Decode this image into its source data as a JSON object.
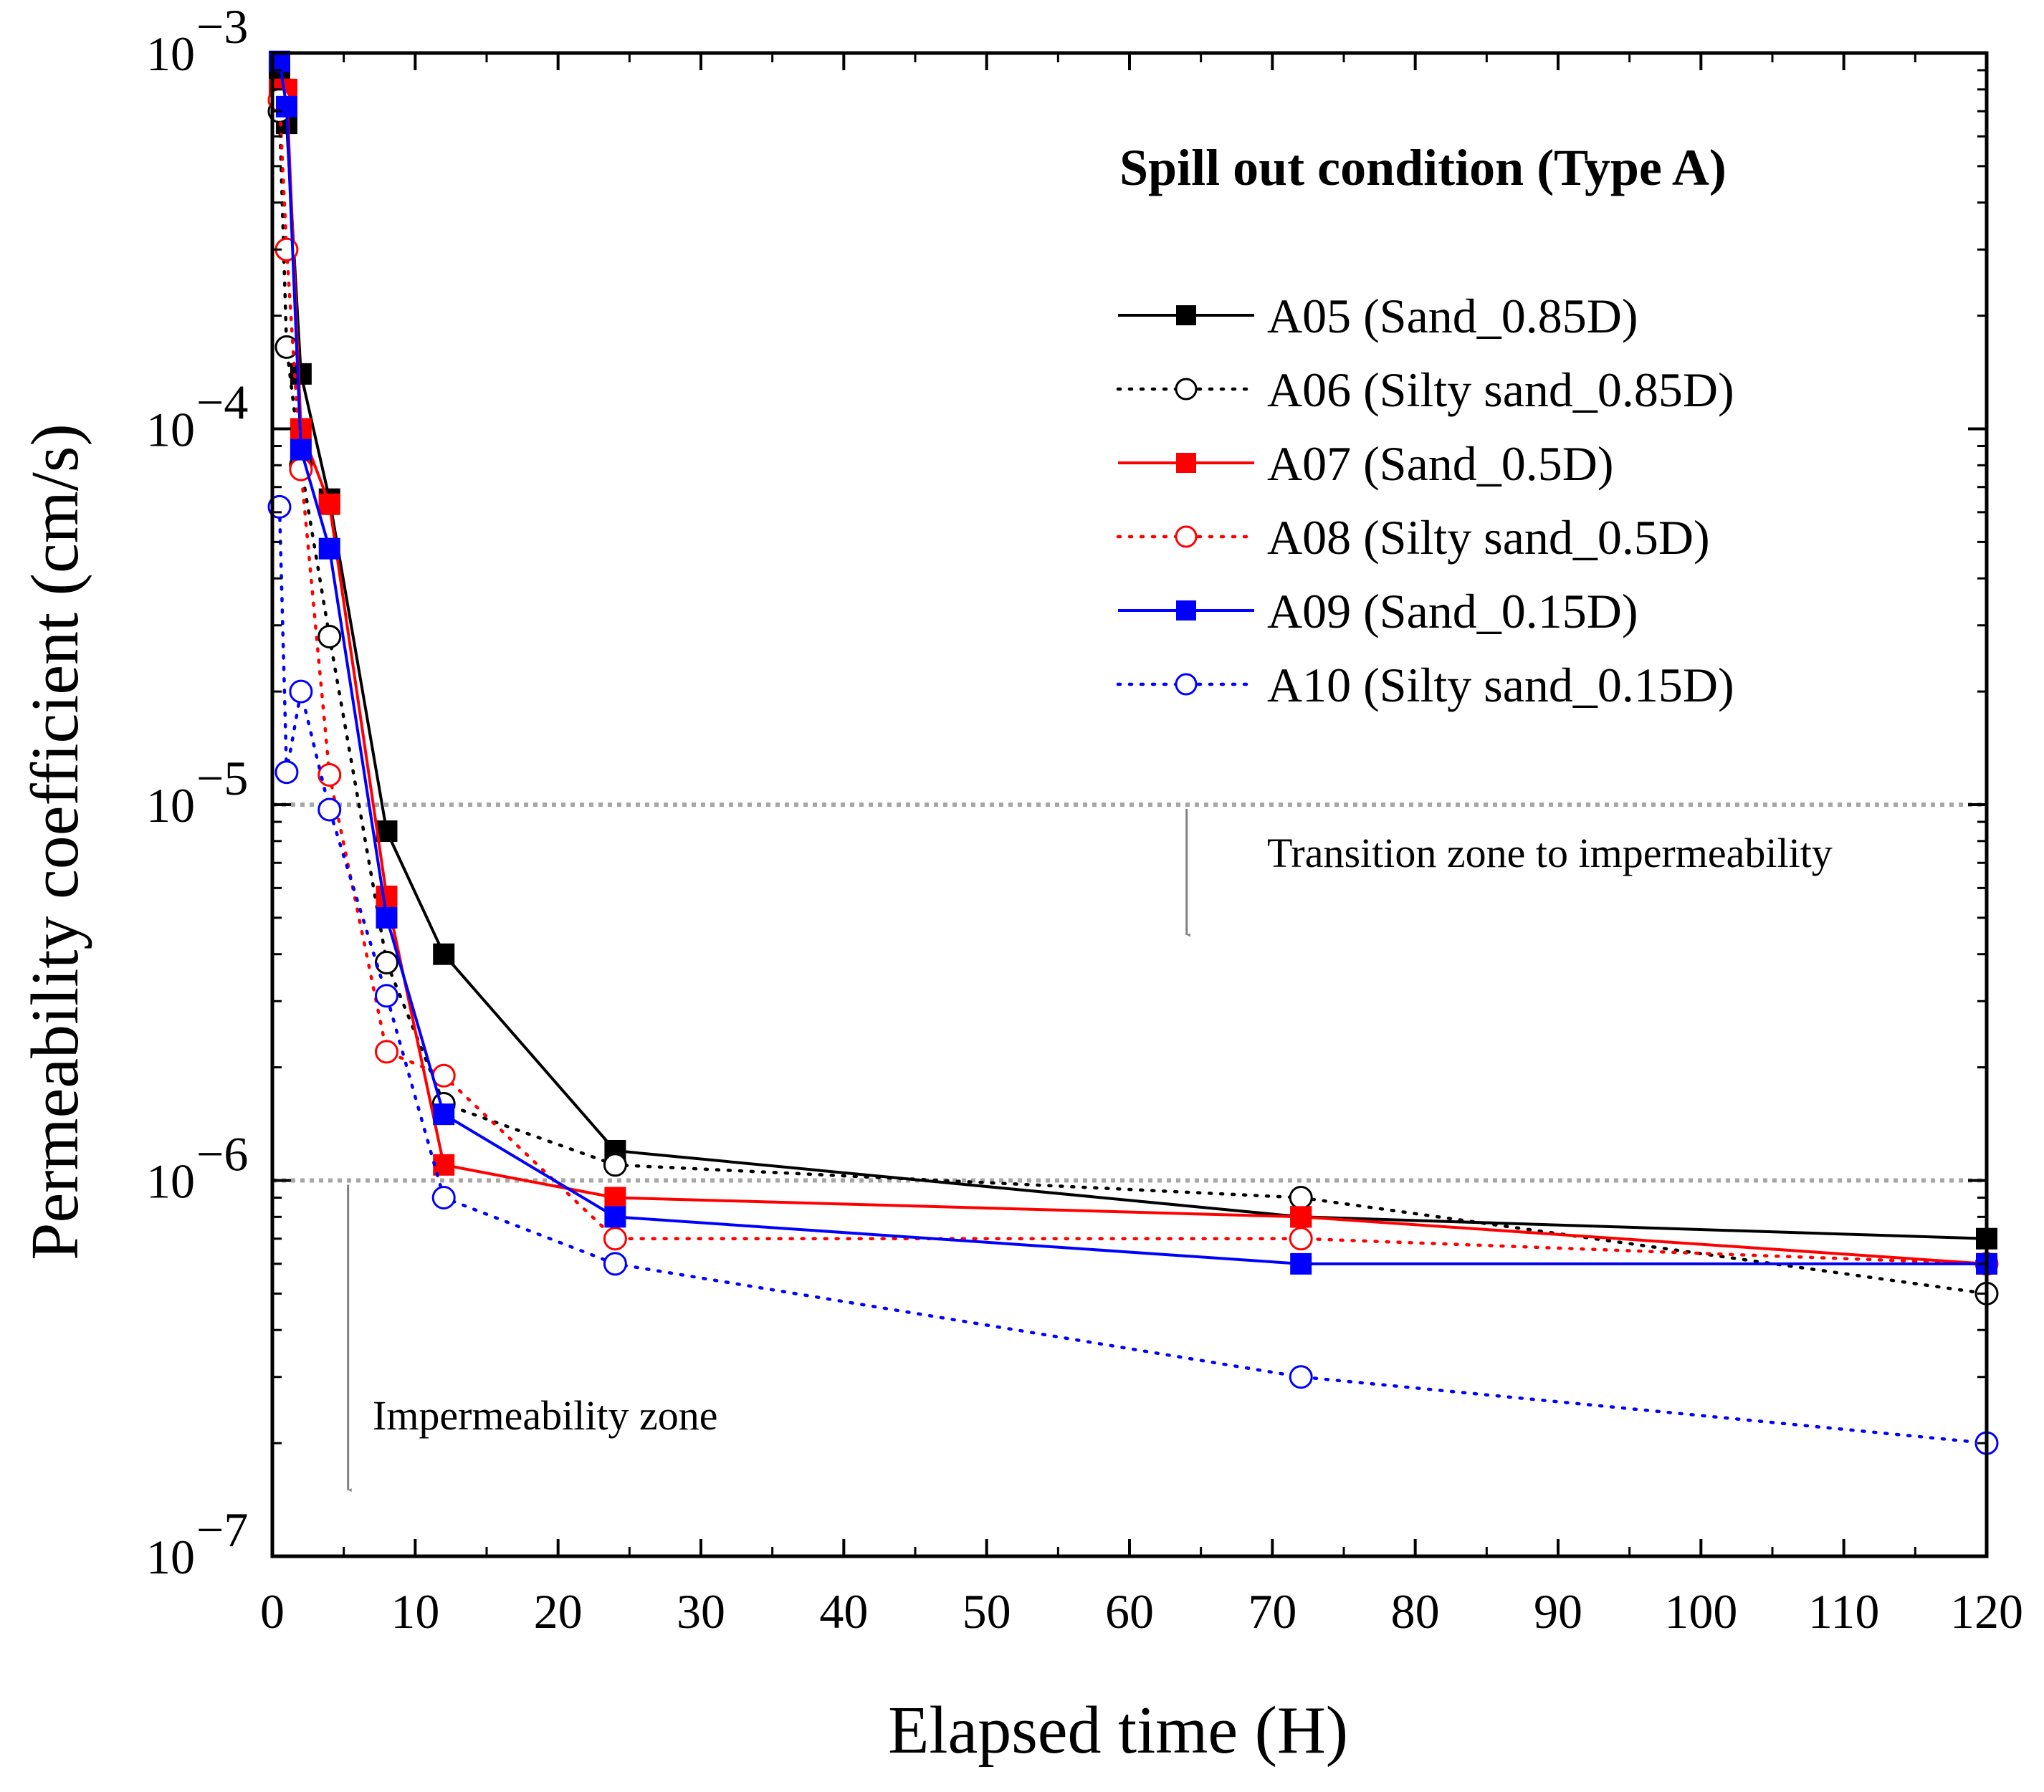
{
  "chart_data": {
    "type": "line",
    "title": "",
    "xlabel": "Elapsed time (H)",
    "ylabel": "Permeability coefficient (cm/s)",
    "xlim": [
      0,
      120
    ],
    "ylim": [
      1e-07,
      0.001
    ],
    "yscale": "log",
    "x_ticks": [
      "0",
      "10",
      "20",
      "30",
      "40",
      "50",
      "60",
      "70",
      "80",
      "90",
      "100",
      "110",
      "120"
    ],
    "y_ticks": [
      {
        "value": 1e-07,
        "base": "10",
        "exp": "−7"
      },
      {
        "value": 1e-06,
        "base": "10",
        "exp": "−6"
      },
      {
        "value": 1e-05,
        "base": "10",
        "exp": "−5"
      },
      {
        "value": 0.0001,
        "base": "10",
        "exp": "−4"
      },
      {
        "value": 0.001,
        "base": "10",
        "exp": "−3"
      }
    ],
    "legend_title": "Spill out condition (Type A)",
    "legend_position": "top-right",
    "series": [
      {
        "name": "A05 (Sand_0.85D)",
        "color": "#000000",
        "line": "solid",
        "marker": "filled-square",
        "x": [
          0.5,
          1,
          2,
          4,
          8,
          12,
          24,
          72,
          120
        ],
        "y": [
          0.0009,
          0.00065,
          0.00014,
          6.5e-05,
          8.5e-06,
          4e-06,
          1.2e-06,
          8e-07,
          7e-07
        ]
      },
      {
        "name": "A06 (Silty sand_0.85D)",
        "color": "#000000",
        "line": "dotted",
        "marker": "open-circle",
        "x": [
          0.5,
          1,
          2,
          4,
          8,
          12,
          24,
          72,
          120
        ],
        "y": [
          0.0007,
          0.000165,
          8e-05,
          2.8e-05,
          3.8e-06,
          1.6e-06,
          1.1e-06,
          9e-07,
          5e-07
        ]
      },
      {
        "name": "A07 (Sand_0.5D)",
        "color": "#ff0000",
        "line": "solid",
        "marker": "filled-square",
        "x": [
          0.5,
          1,
          2,
          4,
          8,
          12,
          24,
          72,
          120
        ],
        "y": [
          0.0008,
          0.0008,
          0.0001,
          6.3e-05,
          5.7e-06,
          1.1e-06,
          9e-07,
          8e-07,
          6e-07
        ]
      },
      {
        "name": "A08 (Silty sand_0.5D)",
        "color": "#ff0000",
        "line": "dotted",
        "marker": "open-circle",
        "x": [
          0.5,
          1,
          2,
          4,
          8,
          12,
          24,
          72,
          120
        ],
        "y": [
          0.00075,
          0.0003,
          7.8e-05,
          1.2e-05,
          2.2e-06,
          1.9e-06,
          7e-07,
          7e-07,
          6e-07
        ]
      },
      {
        "name": "A09 (Sand_0.15D)",
        "color": "#0000ff",
        "line": "solid",
        "marker": "filled-square",
        "x": [
          0.5,
          1,
          2,
          4,
          8,
          12,
          24,
          72,
          120
        ],
        "y": [
          0.00095,
          0.00072,
          8.8e-05,
          4.8e-05,
          5e-06,
          1.5e-06,
          8e-07,
          6e-07,
          6e-07
        ]
      },
      {
        "name": "A10 (Silty sand_0.15D)",
        "color": "#0000ff",
        "line": "dotted",
        "marker": "open-circle",
        "x": [
          0.5,
          1,
          2,
          4,
          8,
          12,
          24,
          72,
          120
        ],
        "y": [
          6.2e-05,
          1.22e-05,
          2e-05,
          9.7e-06,
          3.1e-06,
          9e-07,
          6e-07,
          3e-07,
          2e-07
        ]
      }
    ],
    "reference_lines": [
      {
        "y": 1e-05,
        "style": "dotted",
        "color": "#a6a6a6"
      },
      {
        "y": 1e-06,
        "style": "dotted",
        "color": "#a6a6a6"
      }
    ],
    "annotations": [
      {
        "text": "Transition zone to impermeability",
        "arrow_x": 64,
        "arrow_from": 1e-05,
        "arrow_to": 4.5e-06
      },
      {
        "text": "Impermeability zone",
        "arrow_x": 5.3,
        "arrow_from": 1e-06,
        "arrow_to": 1.5e-07
      }
    ]
  }
}
